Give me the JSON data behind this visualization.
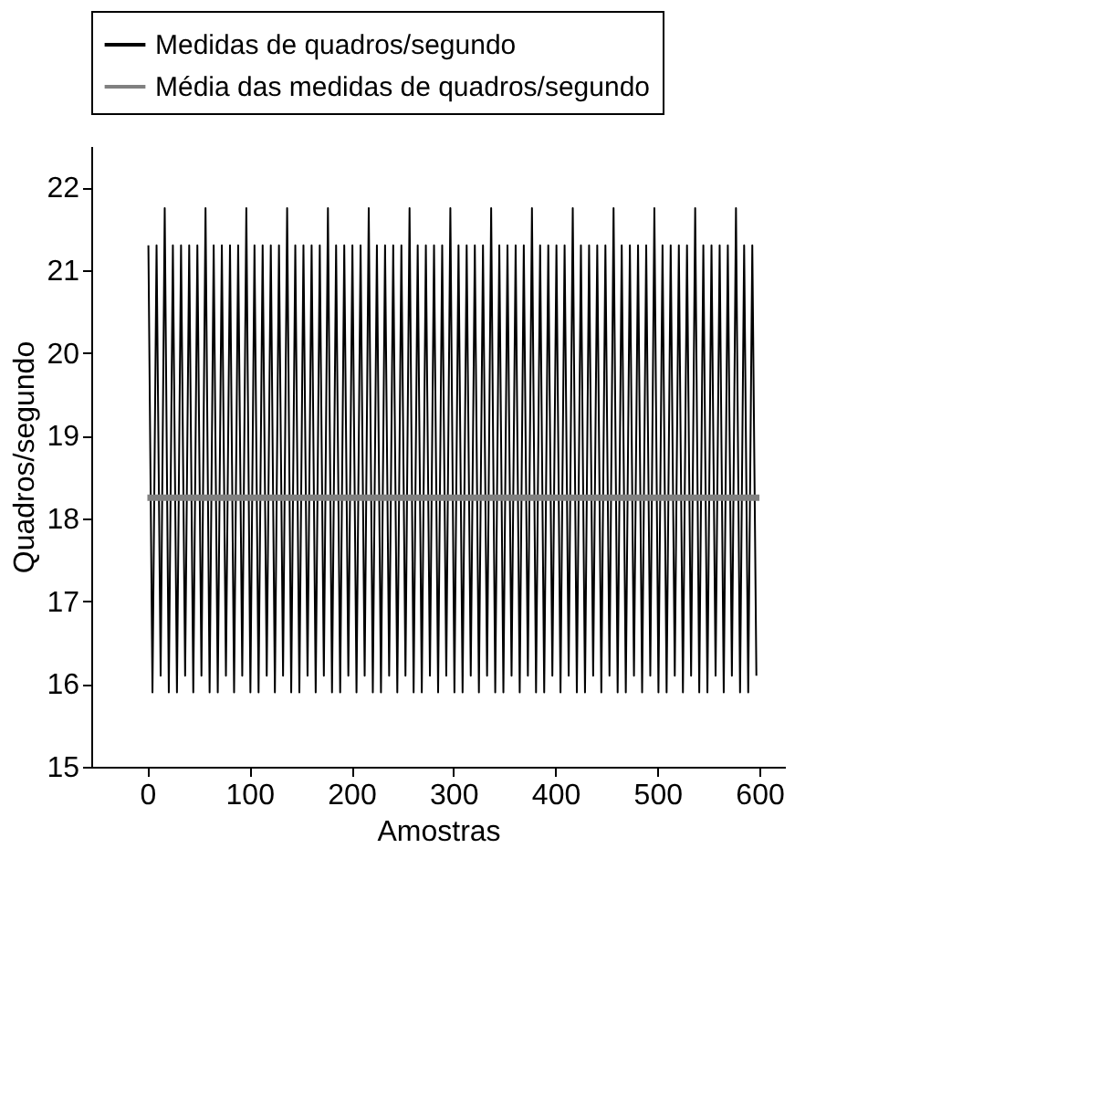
{
  "chart_data": {
    "type": "line",
    "xlabel": "Amostras",
    "ylabel": "Quadros/segundo",
    "xlim": [
      -55,
      625
    ],
    "ylim": [
      15,
      22.5
    ],
    "xticks": [
      0,
      100,
      200,
      300,
      400,
      500,
      600
    ],
    "yticks": [
      15,
      16,
      17,
      18,
      19,
      20,
      21,
      22
    ],
    "grid": false,
    "legend": "top",
    "marker": "none",
    "line_style": "solid",
    "series": [
      {
        "name": "Medidas de quadros/segundo",
        "color": "#000000",
        "x": [
          1,
          5,
          9,
          13,
          17,
          21,
          25,
          29,
          33,
          37,
          41,
          45,
          49,
          53,
          57,
          61,
          65,
          69,
          73,
          77,
          81,
          85,
          89,
          93,
          97,
          101,
          105,
          109,
          113,
          117,
          121,
          125,
          129,
          133,
          137,
          141,
          145,
          149,
          153,
          157,
          161,
          165,
          169,
          173,
          177,
          181,
          185,
          189,
          193,
          197,
          201,
          205,
          209,
          213,
          217,
          221,
          225,
          229,
          233,
          237,
          241,
          245,
          249,
          253,
          257,
          261,
          265,
          269,
          273,
          277,
          281,
          285,
          289,
          293,
          297,
          301,
          305,
          309,
          313,
          317,
          321,
          325,
          329,
          333,
          337,
          341,
          345,
          349,
          353,
          357,
          361,
          365,
          369,
          373,
          377,
          381,
          385,
          389,
          393,
          397,
          401,
          405,
          409,
          413,
          417,
          421,
          425,
          429,
          433,
          437,
          441,
          445,
          449,
          453,
          457,
          461,
          465,
          469,
          473,
          477,
          481,
          485,
          489,
          493,
          497,
          501,
          505,
          509,
          513,
          517,
          521,
          525,
          529,
          533,
          537,
          541,
          545,
          549,
          553,
          557,
          561,
          565,
          569,
          573,
          577,
          581,
          585,
          589,
          593,
          597
        ],
        "values": [
          21.3,
          15.9,
          21.3,
          16.1,
          21.75,
          15.9,
          21.3,
          15.9,
          21.3,
          16.1,
          21.3,
          15.9,
          21.3,
          16.1,
          21.75,
          15.9,
          21.3,
          15.9,
          21.3,
          16.1,
          21.3,
          15.9,
          21.3,
          16.1,
          21.75,
          15.9,
          21.3,
          15.9,
          21.3,
          16.1,
          21.3,
          15.9,
          21.3,
          16.1,
          21.75,
          15.9,
          21.3,
          15.9,
          21.3,
          16.1,
          21.3,
          15.9,
          21.3,
          16.1,
          21.75,
          15.9,
          21.3,
          15.9,
          21.3,
          16.1,
          21.3,
          15.9,
          21.3,
          16.1,
          21.75,
          15.9,
          21.3,
          15.9,
          21.3,
          16.1,
          21.3,
          15.9,
          21.3,
          16.1,
          21.75,
          15.9,
          21.3,
          15.9,
          21.3,
          16.1,
          21.3,
          15.9,
          21.3,
          16.1,
          21.75,
          15.9,
          21.3,
          15.9,
          21.3,
          16.1,
          21.3,
          15.9,
          21.3,
          16.1,
          21.75,
          15.9,
          21.3,
          15.9,
          21.3,
          16.1,
          21.3,
          15.9,
          21.3,
          16.1,
          21.75,
          15.9,
          21.3,
          15.9,
          21.3,
          16.1,
          21.3,
          15.9,
          21.3,
          16.1,
          21.75,
          15.9,
          21.3,
          15.9,
          21.3,
          16.1,
          21.3,
          15.9,
          21.3,
          16.1,
          21.75,
          15.9,
          21.3,
          15.9,
          21.3,
          16.1,
          21.3,
          15.9,
          21.3,
          16.1,
          21.75,
          15.9,
          21.3,
          15.9,
          21.3,
          16.1,
          21.3,
          15.9,
          21.3,
          16.1,
          21.75,
          15.9,
          21.3,
          15.9,
          21.3,
          16.1,
          21.3,
          15.9,
          21.3,
          16.1,
          21.75,
          15.9,
          21.3,
          15.9,
          21.3,
          16.1
        ]
      },
      {
        "name": "Média das medidas de quadros/segundo",
        "color": "#808080",
        "x": [
          0,
          600
        ],
        "values": [
          18.25,
          18.25
        ]
      }
    ]
  }
}
